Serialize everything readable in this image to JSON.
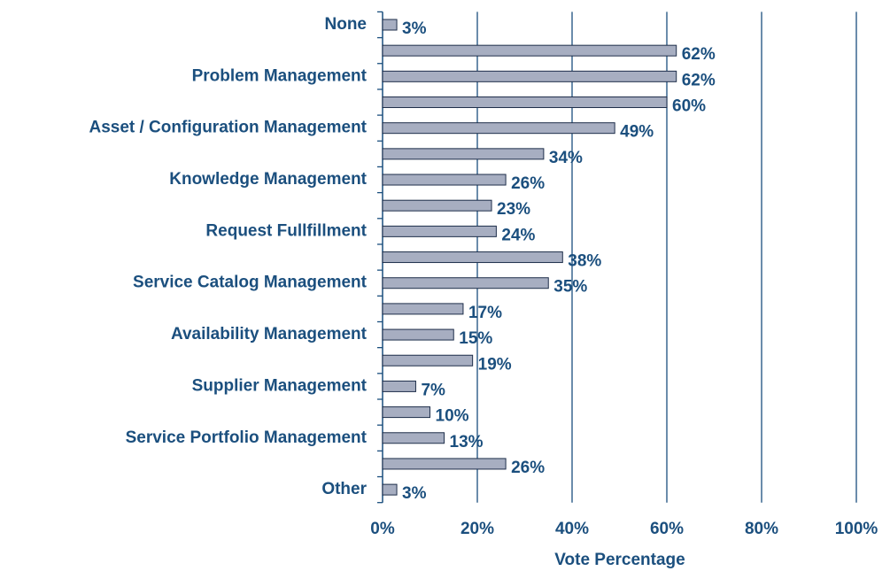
{
  "chart_data": {
    "type": "hbar",
    "x_label": "Vote Percentage",
    "categories": [
      "None",
      null,
      "Problem Management",
      null,
      "Asset / Configuration Management",
      null,
      "Knowledge Management",
      null,
      "Request Fullfillment",
      null,
      "Service Catalog Management",
      null,
      "Availability Management",
      null,
      "Supplier Management",
      null,
      "Service Portfolio Management",
      null,
      "Other"
    ],
    "values": [
      3,
      62,
      62,
      60,
      49,
      34,
      26,
      23,
      24,
      38,
      35,
      17,
      15,
      19,
      7,
      10,
      13,
      26,
      3
    ],
    "value_labels": [
      "3%",
      "62%",
      "62%",
      "60%",
      "49%",
      "34%",
      "26%",
      "23%",
      "24%",
      "38%",
      "35%",
      "17%",
      "15%",
      "19%",
      "7%",
      "10%",
      "13%",
      "26%",
      "3%"
    ],
    "color": "#a7aec1",
    "xlim": [
      0,
      100
    ],
    "xticks": [
      {
        "value": 0,
        "label": "0%"
      },
      {
        "value": 20,
        "label": "20%"
      },
      {
        "value": 40,
        "label": "40%"
      },
      {
        "value": 60,
        "label": "60%"
      },
      {
        "value": 80,
        "label": "80%"
      },
      {
        "value": 100,
        "label": "100%"
      }
    ],
    "grid": true
  }
}
